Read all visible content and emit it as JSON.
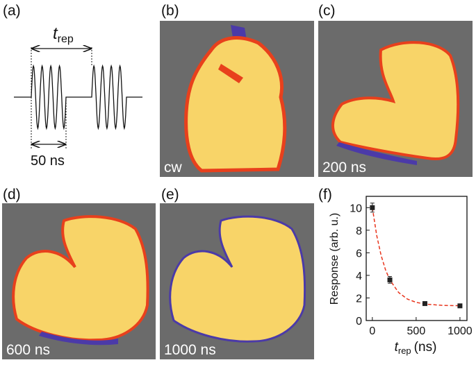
{
  "panels": {
    "labels": [
      "(a)",
      "(b)",
      "(c)",
      "(d)",
      "(e)",
      "(f)"
    ],
    "pulse": {
      "symbol": "t",
      "subscript": "rep",
      "width": "50 ns"
    },
    "images": [
      "cw",
      "200 ns",
      "600 ns",
      "1000 ns"
    ]
  },
  "chart_data": {
    "type": "scatter",
    "ylabel": "Response (arb. u.)",
    "xlabel": {
      "symbol": "t",
      "subscript": "rep",
      "unit": "(ns)"
    },
    "xlim": [
      -70,
      1080
    ],
    "xticks": [
      0,
      500,
      1000
    ],
    "ylim": [
      0,
      11
    ],
    "yticks": [
      0,
      2,
      4,
      6,
      8,
      10
    ],
    "series": [
      {
        "color": "#222222",
        "x": [
          0,
          200,
          600,
          1000
        ],
        "values": [
          10,
          3.6,
          1.5,
          1.3
        ],
        "errors": [
          0.4,
          0.3,
          0.15,
          0.1
        ]
      },
      {
        "color": "#e8341c",
        "x": [
          0,
          50,
          100,
          150,
          200,
          300,
          400,
          500,
          600,
          800,
          1000
        ],
        "values": [
          10,
          7.53,
          5.77,
          4.5,
          3.59,
          2.48,
          1.9,
          1.61,
          1.46,
          1.34,
          1.31
        ]
      }
    ]
  }
}
